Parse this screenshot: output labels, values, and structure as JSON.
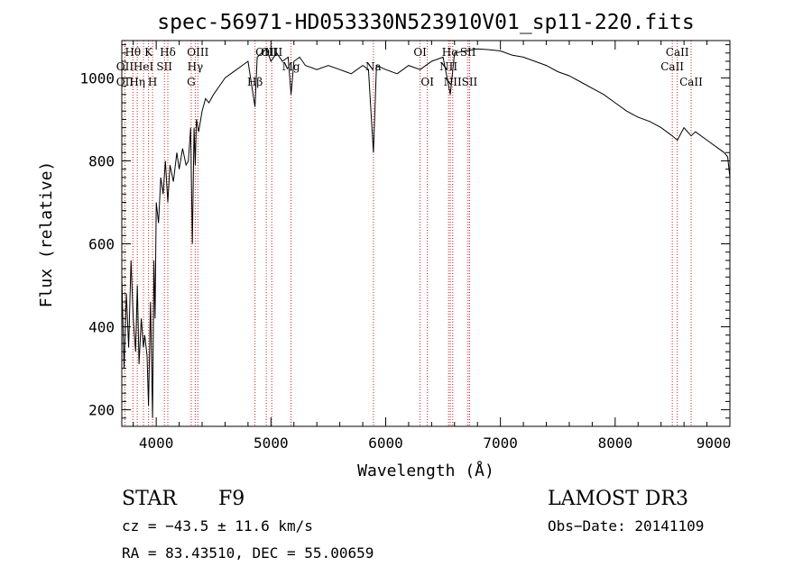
{
  "chart_data": {
    "type": "line",
    "title": "spec-56971-HD053330N523910V01_sp11-220.fits",
    "xlabel": "Wavelength (Å)",
    "ylabel": "Flux (relative)",
    "xlim": [
      3700,
      9000
    ],
    "ylim": [
      160,
      1090
    ],
    "xticks": [
      4000,
      5000,
      6000,
      7000,
      8000,
      9000
    ],
    "yticks": [
      200,
      400,
      600,
      800,
      1000
    ],
    "series": [
      {
        "name": "spectrum",
        "x": [
          3700,
          3720,
          3740,
          3760,
          3780,
          3800,
          3820,
          3835,
          3850,
          3870,
          3889,
          3900,
          3920,
          3933,
          3950,
          3968,
          3980,
          3990,
          4000,
          4020,
          4040,
          4060,
          4080,
          4101,
          4120,
          4150,
          4180,
          4200,
          4230,
          4260,
          4280,
          4300,
          4315,
          4330,
          4340,
          4350,
          4370,
          4400,
          4430,
          4460,
          4500,
          4550,
          4600,
          4650,
          4700,
          4750,
          4800,
          4861,
          4880,
          4920,
          4960,
          5000,
          5050,
          5100,
          5150,
          5175,
          5200,
          5250,
          5300,
          5400,
          5500,
          5600,
          5700,
          5800,
          5850,
          5893,
          5920,
          6000,
          6100,
          6200,
          6300,
          6400,
          6500,
          6563,
          6600,
          6700,
          6800,
          6900,
          7000,
          7100,
          7200,
          7300,
          7400,
          7500,
          7600,
          7700,
          7800,
          7900,
          8000,
          8100,
          8200,
          8300,
          8400,
          8498,
          8542,
          8600,
          8662,
          8700,
          8800,
          8900,
          8950,
          8980,
          9000
        ],
        "values": [
          520,
          300,
          480,
          350,
          560,
          420,
          340,
          500,
          310,
          420,
          350,
          380,
          330,
          210,
          460,
          180,
          560,
          420,
          700,
          650,
          760,
          720,
          800,
          700,
          790,
          750,
          820,
          780,
          830,
          790,
          800,
          880,
          600,
          880,
          790,
          900,
          870,
          920,
          950,
          940,
          960,
          980,
          1000,
          1010,
          1020,
          1030,
          1040,
          930,
          1050,
          1060,
          1070,
          1040,
          1060,
          1040,
          1050,
          960,
          1040,
          1050,
          1030,
          1020,
          1030,
          1020,
          1010,
          1030,
          1020,
          820,
          1030,
          1020,
          1010,
          1030,
          1020,
          1040,
          1050,
          960,
          1060,
          1065,
          1070,
          1068,
          1065,
          1055,
          1050,
          1040,
          1030,
          1015,
          1005,
          990,
          975,
          960,
          940,
          920,
          905,
          895,
          880,
          860,
          850,
          880,
          860,
          870,
          850,
          830,
          820,
          810,
          760
        ]
      }
    ],
    "line_markers": [
      {
        "name": "Hθ",
        "wavelength": 3797,
        "row": 0
      },
      {
        "name": "OII",
        "wavelength": 3727,
        "row": 1
      },
      {
        "name": "OII",
        "wavelength": 3727,
        "row": 2
      },
      {
        "name": "HeI",
        "wavelength": 3889,
        "row": 1
      },
      {
        "name": "Hη",
        "wavelength": 3835,
        "row": 2
      },
      {
        "name": "K",
        "wavelength": 3933,
        "row": 0
      },
      {
        "name": "H",
        "wavelength": 3968,
        "row": 2
      },
      {
        "name": "SII",
        "wavelength": 4071,
        "row": 1
      },
      {
        "name": "Hδ",
        "wavelength": 4101,
        "row": 0
      },
      {
        "name": "OIII",
        "wavelength": 4363,
        "row": 0
      },
      {
        "name": "Hγ",
        "wavelength": 4340,
        "row": 1
      },
      {
        "name": "G",
        "wavelength": 4305,
        "row": 2
      },
      {
        "name": "Hβ",
        "wavelength": 4861,
        "row": 2
      },
      {
        "name": "OIII",
        "wavelength": 4959,
        "row": 0
      },
      {
        "name": "OIII",
        "wavelength": 5007,
        "row": 0
      },
      {
        "name": "Mg",
        "wavelength": 5175,
        "row": 1
      },
      {
        "name": "Na",
        "wavelength": 5893,
        "row": 1
      },
      {
        "name": "OI",
        "wavelength": 6300,
        "row": 0
      },
      {
        "name": "OI",
        "wavelength": 6363,
        "row": 2
      },
      {
        "name": "Hα",
        "wavelength": 6563,
        "row": 0
      },
      {
        "name": "NII",
        "wavelength": 6548,
        "row": 1
      },
      {
        "name": "NII",
        "wavelength": 6584,
        "row": 2
      },
      {
        "name": "SII",
        "wavelength": 6717,
        "row": 0
      },
      {
        "name": "SII",
        "wavelength": 6731,
        "row": 2
      },
      {
        "name": "CaII",
        "wavelength": 8542,
        "row": 0
      },
      {
        "name": "CaII",
        "wavelength": 8498,
        "row": 1
      },
      {
        "name": "CaII",
        "wavelength": 8662,
        "row": 2
      }
    ]
  },
  "info": {
    "class": "STAR",
    "subclass": "F9",
    "survey": "LAMOST DR3",
    "cz": "cz = −43.5 ± 11.6 km/s",
    "obs_date": "Obs−Date: 20141109",
    "coords": "RA =  83.43510, DEC =  55.00659"
  },
  "colors": {
    "spectrum": "#000000",
    "marker": "#cc2222",
    "axes": "#000000"
  }
}
